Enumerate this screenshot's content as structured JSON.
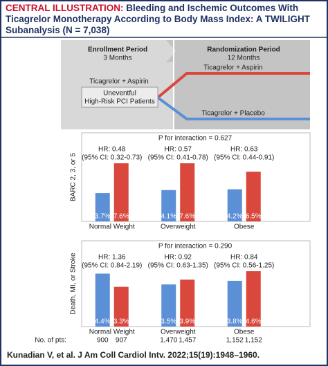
{
  "header": {
    "label": "CENTRAL ILLUSTRATION:",
    "title_line1": "Bleeding and Ischemic Outcomes With",
    "title_line2": "Ticagrelor Monotherapy According to Body Mass Index: A TWILIGHT",
    "title_line3": "Subanalysis (N = 7,038)"
  },
  "diagram": {
    "enrollment": {
      "title": "Enrollment Period",
      "duration": "3 Months"
    },
    "randomization": {
      "title": "Randomization Period",
      "duration": "12 Months"
    },
    "pre_arm": "Ticagrelor + Aspirin",
    "box_line1": "Uneventful",
    "box_line2": "High-Risk PCI Patients",
    "arm_red": "Ticagrelor + Aspirin",
    "arm_blue": "Ticagrelor + Placebo"
  },
  "chart_data": [
    {
      "type": "bar",
      "y_label": "BARC 2, 3, or 5",
      "annotation": "P for interaction = 0.627",
      "categories": [
        "Normal Weight",
        "Overweight",
        "Obese"
      ],
      "hr": [
        "HR: 0.48",
        "HR: 0.57",
        "HR: 0.63"
      ],
      "ci": [
        "(95% CI: 0.32-0.73)",
        "(95% CI: 0.41-0.78)",
        "(95% CI: 0.44-0.91)"
      ],
      "series": [
        {
          "color": "#5b8fd6",
          "values": [
            3.7,
            4.1,
            4.2
          ],
          "value_labels": [
            "3.7%",
            "4.1%",
            "4.2%"
          ]
        },
        {
          "color": "#d9473d",
          "values": [
            7.6,
            7.6,
            6.5
          ],
          "value_labels": [
            "7.6%",
            "7.6%",
            "6.5%"
          ]
        }
      ]
    },
    {
      "type": "bar",
      "y_label": "Death, MI, or Stroke",
      "annotation": "P for interaction = 0.290",
      "categories": [
        "Normal Weight",
        "Overweight",
        "Obese"
      ],
      "hr": [
        "HR: 1.36",
        "HR: 0.92",
        "HR: 0.84"
      ],
      "ci": [
        "(95% CI: 0.84-2.19)",
        "(95% CI: 0.63-1.35)",
        "(95% CI: 0.56-1.25)"
      ],
      "series": [
        {
          "color": "#5b8fd6",
          "values": [
            4.4,
            3.5,
            3.8
          ],
          "value_labels": [
            "4.4%",
            "3.5%",
            "3.8%"
          ]
        },
        {
          "color": "#d9473d",
          "values": [
            3.3,
            3.9,
            4.6
          ],
          "value_labels": [
            "3.3%",
            "3.9%",
            "4.6%"
          ]
        }
      ],
      "pts_label": "No. of pts:",
      "pts": [
        [
          "900",
          "907"
        ],
        [
          "1,470",
          "1,457"
        ],
        [
          "1,152",
          "1,152"
        ]
      ]
    }
  ],
  "footer": "Kunadian V, et al. J Am Coll Cardiol Intv. 2022;15(19):1948–1960."
}
